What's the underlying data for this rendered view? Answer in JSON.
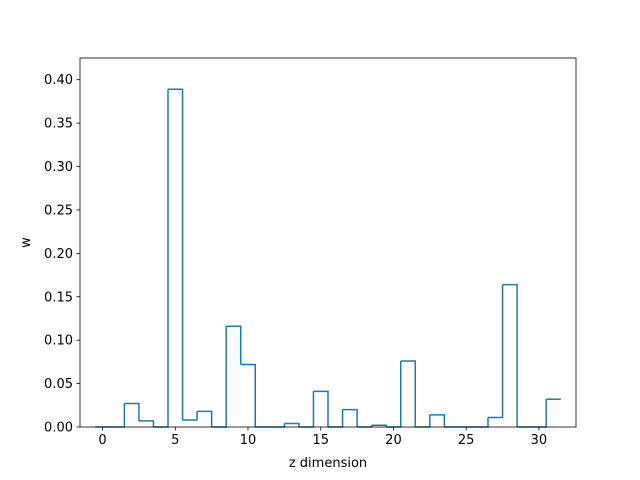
{
  "chart_data": {
    "type": "step-histogram",
    "title": "",
    "xlabel": "z dimension",
    "ylabel": "w",
    "xlim": [
      -1.55,
      32.55
    ],
    "ylim": [
      0.0,
      0.425
    ],
    "xticks": [
      0,
      5,
      10,
      15,
      20,
      25,
      30
    ],
    "yticks": [
      0.0,
      0.05,
      0.1,
      0.15,
      0.2,
      0.25,
      0.3,
      0.35,
      0.4
    ],
    "ytick_labels": [
      "0.00",
      "0.05",
      "0.10",
      "0.15",
      "0.20",
      "0.25",
      "0.30",
      "0.35",
      "0.40"
    ],
    "grid": false,
    "line_color": "#1f77b4",
    "x": [
      0,
      1,
      2,
      3,
      4,
      5,
      6,
      7,
      8,
      9,
      10,
      11,
      12,
      13,
      14,
      15,
      16,
      17,
      18,
      19,
      20,
      21,
      22,
      23,
      24,
      25,
      26,
      27,
      28,
      29,
      30,
      31
    ],
    "values": [
      0.0,
      0.0,
      0.027,
      0.007,
      0.0,
      0.389,
      0.008,
      0.018,
      0.0,
      0.116,
      0.072,
      0.0,
      0.0,
      0.004,
      0.0,
      0.041,
      0.0,
      0.02,
      0.0,
      0.002,
      0.0,
      0.076,
      0.0,
      0.014,
      0.0,
      0.0,
      0.0,
      0.011,
      0.164,
      0.0,
      0.0,
      0.032
    ]
  }
}
